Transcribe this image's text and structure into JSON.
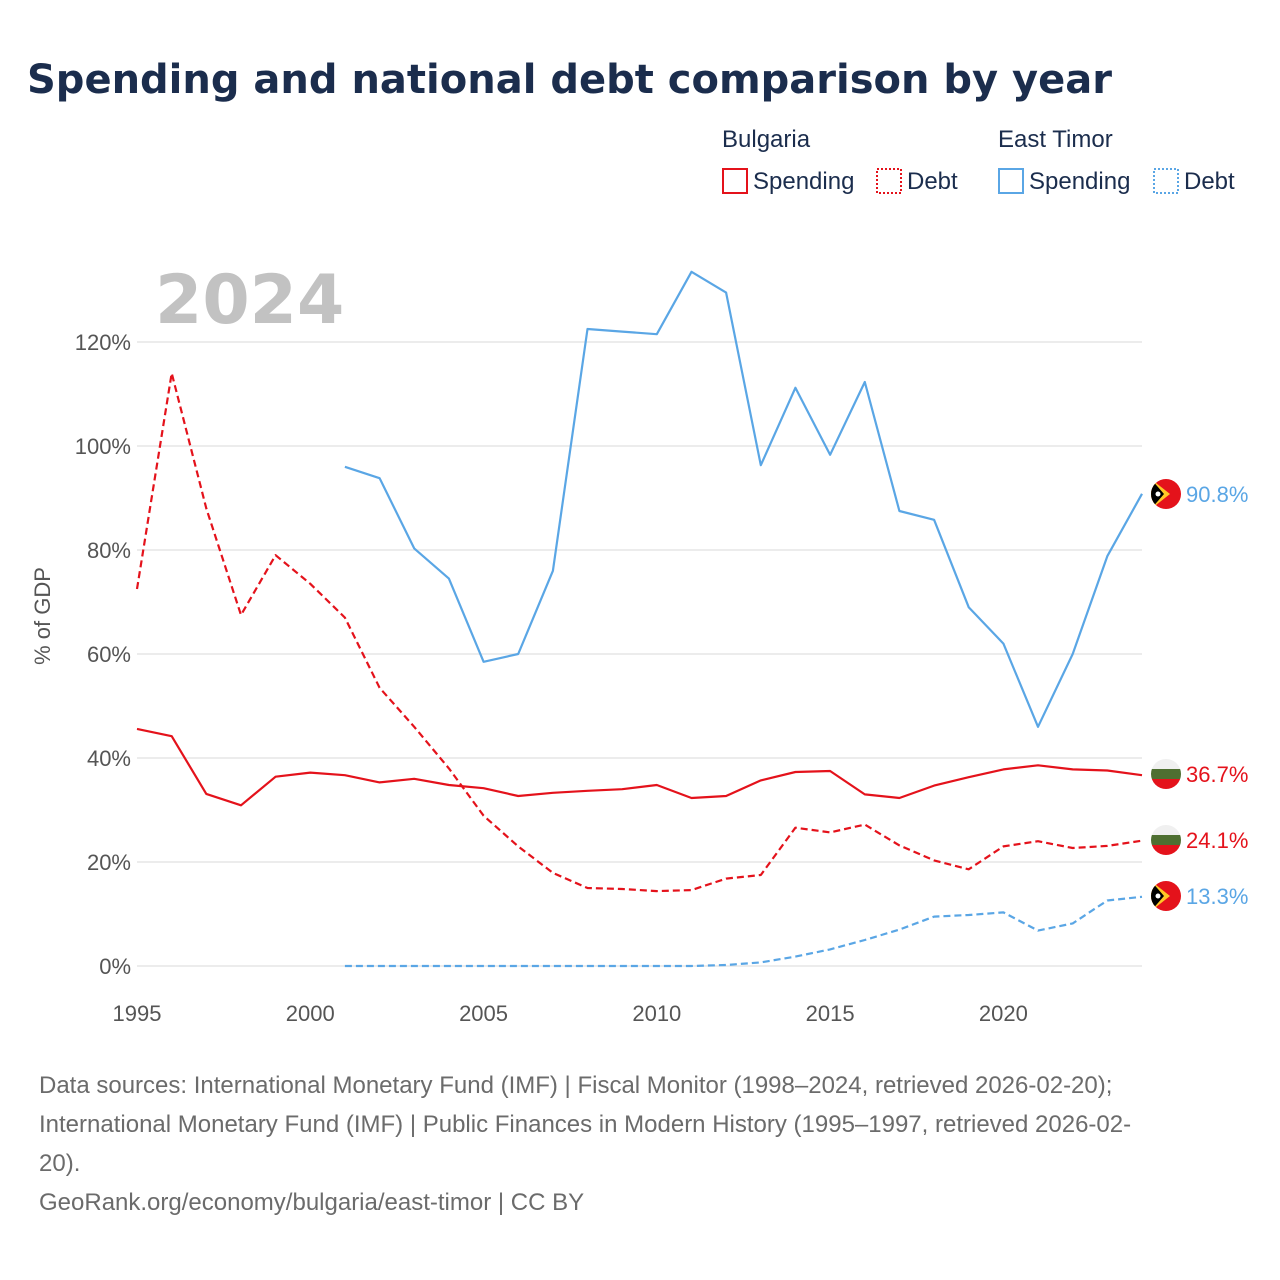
{
  "chart_data": {
    "type": "line",
    "title": "Spending and national debt comparison by year",
    "ylabel": "% of GDP",
    "year_label": "2024",
    "xlim": [
      1995,
      2024
    ],
    "ylim": [
      0,
      125
    ],
    "x_ticks": [
      1995,
      2000,
      2005,
      2010,
      2015,
      2020
    ],
    "y_ticks": [
      0,
      20,
      40,
      60,
      80,
      100,
      120
    ],
    "y_tick_labels": [
      "0%",
      "20%",
      "40%",
      "60%",
      "80%",
      "100%",
      "120%"
    ],
    "legend": {
      "groups": [
        {
          "name": "Bulgaria",
          "items": [
            {
              "label": "Spending",
              "style": "solid"
            },
            {
              "label": "Debt",
              "style": "dotted"
            }
          ],
          "color": "#e4121b"
        },
        {
          "name": "East Timor",
          "items": [
            {
              "label": "Spending",
              "style": "solid"
            },
            {
              "label": "Debt",
              "style": "dotted"
            }
          ],
          "color": "#5aa6e5"
        }
      ]
    },
    "colors": {
      "bulgaria": "#e4121b",
      "east_timor": "#5aa6e5"
    },
    "series": [
      {
        "name": "Bulgaria Spending",
        "country": "bulgaria",
        "kind": "spending",
        "color": "#e4121b",
        "dash": false,
        "x": [
          1995,
          1996,
          1997,
          1998,
          1999,
          2000,
          2001,
          2002,
          2003,
          2004,
          2005,
          2006,
          2007,
          2008,
          2009,
          2010,
          2011,
          2012,
          2013,
          2014,
          2015,
          2016,
          2017,
          2018,
          2019,
          2020,
          2021,
          2022,
          2023,
          2024
        ],
        "values": [
          45.6,
          44.2,
          33.1,
          30.9,
          36.4,
          37.2,
          36.7,
          35.3,
          36.0,
          34.8,
          34.2,
          32.7,
          33.3,
          33.7,
          34.0,
          34.8,
          32.3,
          32.7,
          35.7,
          37.3,
          37.5,
          33.0,
          32.3,
          34.7,
          36.3,
          37.8,
          38.6,
          37.8,
          37.6,
          36.7
        ],
        "end_label": "36.7%"
      },
      {
        "name": "Bulgaria Debt",
        "country": "bulgaria",
        "kind": "debt",
        "color": "#e4121b",
        "dash": true,
        "x": [
          1995,
          1996,
          1997,
          1998,
          1999,
          2000,
          2001,
          2002,
          2003,
          2004,
          2005,
          2006,
          2007,
          2008,
          2009,
          2010,
          2011,
          2012,
          2013,
          2014,
          2015,
          2016,
          2017,
          2018,
          2019,
          2020,
          2021,
          2022,
          2023,
          2024
        ],
        "values": [
          72.5,
          114.0,
          88.0,
          67.5,
          79.0,
          73.5,
          67.0,
          53.5,
          46.0,
          38.0,
          28.9,
          23.0,
          17.9,
          15.0,
          14.8,
          14.4,
          14.6,
          16.8,
          17.5,
          26.6,
          25.7,
          27.2,
          23.2,
          20.3,
          18.6,
          23.0,
          24.0,
          22.7,
          23.1,
          24.1
        ],
        "end_label": "24.1%"
      },
      {
        "name": "East Timor Spending",
        "country": "east_timor",
        "kind": "spending",
        "color": "#5aa6e5",
        "dash": false,
        "x": [
          2001,
          2002,
          2003,
          2004,
          2005,
          2006,
          2007,
          2008,
          2009,
          2010,
          2011,
          2012,
          2013,
          2014,
          2015,
          2016,
          2017,
          2018,
          2019,
          2020,
          2021,
          2022,
          2023,
          2024
        ],
        "values": [
          96.0,
          93.8,
          80.3,
          74.5,
          58.5,
          60.0,
          76.0,
          122.5,
          122.0,
          121.5,
          133.5,
          129.5,
          96.3,
          111.2,
          98.3,
          112.3,
          87.5,
          85.8,
          69.0,
          62.0,
          46.0,
          60.0,
          78.8,
          90.8
        ],
        "end_label": "90.8%"
      },
      {
        "name": "East Timor Debt",
        "country": "east_timor",
        "kind": "debt",
        "color": "#5aa6e5",
        "dash": true,
        "x": [
          2001,
          2002,
          2003,
          2004,
          2005,
          2006,
          2007,
          2008,
          2009,
          2010,
          2011,
          2012,
          2013,
          2014,
          2015,
          2016,
          2017,
          2018,
          2019,
          2020,
          2021,
          2022,
          2023,
          2024
        ],
        "values": [
          0,
          0,
          0,
          0,
          0,
          0,
          0,
          0,
          0,
          0,
          0,
          0.2,
          0.7,
          1.8,
          3.2,
          5.0,
          7.0,
          9.5,
          9.8,
          10.3,
          6.8,
          8.2,
          12.6,
          13.3
        ],
        "end_label": "13.3%"
      }
    ],
    "sources": [
      "Data sources: International Monetary Fund (IMF) | Fiscal Monitor (1998–2024, retrieved 2026-02-20);",
      "International Monetary Fund (IMF) | Public Finances in Modern History (1995–1997, retrieved 2026-02-",
      "20).",
      "GeoRank.org/economy/bulgaria/east-timor | CC BY"
    ]
  }
}
